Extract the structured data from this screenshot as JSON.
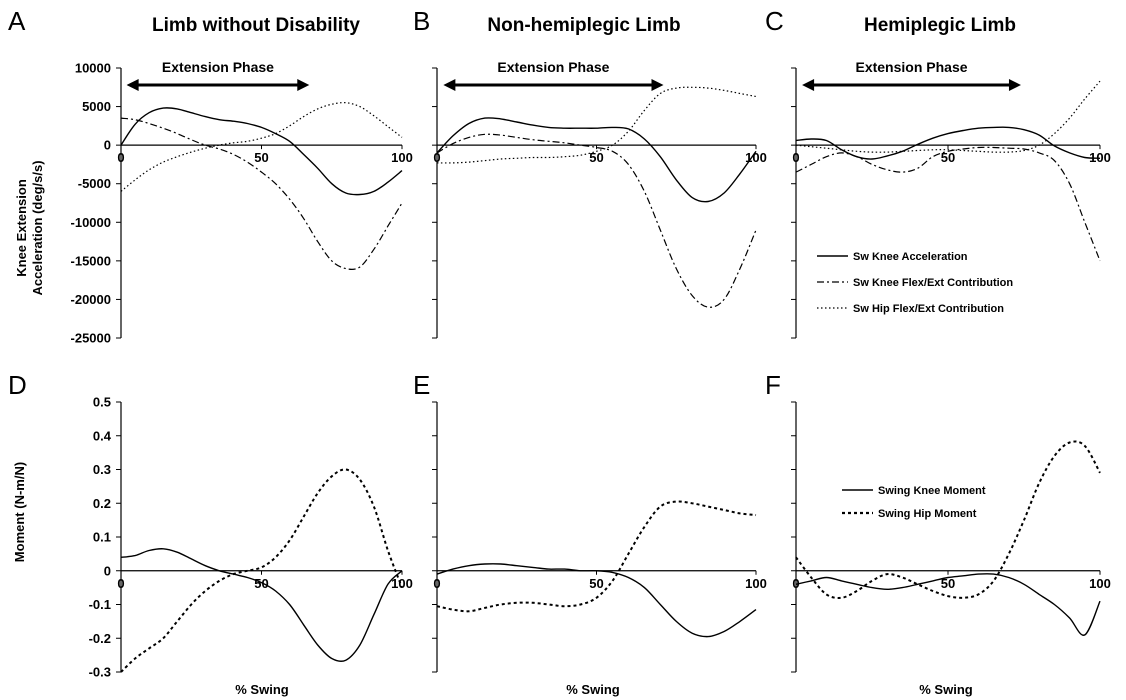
{
  "colors": {
    "line": "#000000",
    "series_gray": "#444444",
    "background": "#ffffff"
  },
  "columns": [
    {
      "title": "Limb without Disability"
    },
    {
      "title": "Non-hemiplegic Limb"
    },
    {
      "title": "Hemiplegic Limb"
    }
  ],
  "rows": [
    {
      "ylabel_lines": [
        "Knee Extension",
        "Acceleration (deg/s/s)"
      ]
    },
    {
      "ylabel_lines": [
        "Moment (N-m/N)"
      ]
    }
  ],
  "legends": {
    "acceleration": [
      {
        "label": "Sw Knee Acceleration",
        "style": "solid"
      },
      {
        "label": "Sw Knee Flex/Ext Contribution",
        "style": "dashdot"
      },
      {
        "label": "Sw Hip Flex/Ext Contribution",
        "style": "dotted"
      }
    ],
    "moment": [
      {
        "label": "Swing Knee Moment",
        "style": "solid"
      },
      {
        "label": "Swing Hip Moment",
        "style": "dashed"
      }
    ]
  },
  "chart_data": [
    {
      "panel": "A",
      "type": "line",
      "column": 0,
      "row": 0,
      "ylim": [
        -25000,
        10000
      ],
      "yticks": [
        "10000",
        "5000",
        "0",
        "-5000",
        "-10000",
        "-15000",
        "-20000",
        "-25000"
      ],
      "xticks": [
        "0",
        "50",
        "100"
      ],
      "annotation": {
        "label": "Extension Phase",
        "x_range": [
          2,
          67
        ]
      },
      "series": [
        {
          "style": "solid",
          "x": [
            0,
            5,
            10,
            15,
            20,
            25,
            30,
            35,
            40,
            45,
            50,
            55,
            60,
            65,
            70,
            75,
            80,
            85,
            90,
            95,
            100
          ],
          "values": [
            0,
            2700,
            4200,
            4800,
            4700,
            4200,
            3700,
            3300,
            3100,
            2800,
            2300,
            1500,
            500,
            -1200,
            -3000,
            -5000,
            -6200,
            -6400,
            -6000,
            -4800,
            -3300
          ]
        },
        {
          "style": "dashdot",
          "x": [
            0,
            5,
            10,
            15,
            20,
            25,
            30,
            35,
            40,
            45,
            50,
            55,
            60,
            65,
            70,
            75,
            80,
            85,
            90,
            95,
            100
          ],
          "values": [
            3500,
            3300,
            2800,
            2200,
            1500,
            700,
            0,
            -500,
            -1200,
            -2200,
            -3500,
            -5000,
            -7000,
            -9500,
            -12500,
            -15000,
            -16000,
            -15800,
            -13500,
            -10500,
            -7500
          ]
        },
        {
          "style": "dotted",
          "x": [
            0,
            5,
            10,
            15,
            20,
            25,
            30,
            35,
            40,
            45,
            50,
            55,
            60,
            65,
            70,
            75,
            80,
            85,
            90,
            95,
            100
          ],
          "values": [
            -6000,
            -4500,
            -3200,
            -2200,
            -1500,
            -900,
            -400,
            0,
            300,
            500,
            900,
            1500,
            2500,
            3700,
            4700,
            5300,
            5500,
            5000,
            3800,
            2400,
            1000
          ]
        }
      ]
    },
    {
      "panel": "B",
      "type": "line",
      "column": 1,
      "row": 0,
      "ylim": [
        -25000,
        10000
      ],
      "xticks": [
        "0",
        "50",
        "100"
      ],
      "annotation": {
        "label": "Extension Phase",
        "x_range": [
          2,
          71
        ]
      },
      "series": [
        {
          "style": "solid",
          "x": [
            0,
            5,
            10,
            15,
            20,
            25,
            30,
            35,
            40,
            45,
            50,
            55,
            60,
            65,
            70,
            75,
            80,
            85,
            90,
            95,
            100
          ],
          "values": [
            -1000,
            1200,
            2800,
            3500,
            3400,
            3000,
            2600,
            2300,
            2200,
            2200,
            2200,
            2300,
            2100,
            800,
            -1500,
            -4500,
            -6800,
            -7300,
            -6200,
            -3700,
            -800
          ]
        },
        {
          "style": "dashdot",
          "x": [
            0,
            5,
            10,
            15,
            20,
            25,
            30,
            35,
            40,
            45,
            50,
            55,
            60,
            65,
            70,
            75,
            80,
            85,
            90,
            95,
            100
          ],
          "values": [
            -1000,
            200,
            1000,
            1400,
            1300,
            1000,
            700,
            500,
            300,
            0,
            -300,
            -800,
            -2500,
            -6000,
            -11000,
            -16000,
            -19500,
            -21000,
            -20000,
            -16000,
            -11000
          ]
        },
        {
          "style": "dotted",
          "x": [
            0,
            5,
            10,
            15,
            20,
            25,
            30,
            35,
            40,
            45,
            50,
            55,
            60,
            65,
            70,
            75,
            80,
            85,
            90,
            95,
            100
          ],
          "values": [
            -2300,
            -2300,
            -2200,
            -2000,
            -1800,
            -1700,
            -1600,
            -1600,
            -1500,
            -1300,
            -800,
            0,
            1800,
            4500,
            6700,
            7400,
            7500,
            7400,
            7100,
            6700,
            6300
          ]
        }
      ]
    },
    {
      "panel": "C",
      "type": "line",
      "column": 2,
      "row": 0,
      "ylim": [
        -25000,
        10000
      ],
      "xticks": [
        "0",
        "50",
        "100"
      ],
      "annotation": {
        "label": "Extension Phase",
        "x_range": [
          2,
          74
        ]
      },
      "series": [
        {
          "style": "solid",
          "x": [
            0,
            5,
            10,
            15,
            20,
            25,
            30,
            35,
            40,
            45,
            50,
            55,
            60,
            65,
            70,
            75,
            80,
            85,
            90,
            95,
            100
          ],
          "values": [
            600,
            800,
            600,
            -600,
            -1500,
            -1800,
            -1400,
            -800,
            100,
            900,
            1500,
            1900,
            2200,
            2300,
            2300,
            2000,
            1300,
            -100,
            -1000,
            -1600,
            -1700
          ]
        },
        {
          "style": "dashdot",
          "x": [
            0,
            5,
            10,
            15,
            20,
            25,
            30,
            35,
            40,
            45,
            50,
            55,
            60,
            65,
            70,
            75,
            80,
            85,
            90,
            95,
            100
          ],
          "values": [
            -3500,
            -2500,
            -1500,
            -1000,
            -1500,
            -2500,
            -3200,
            -3500,
            -3000,
            -1500,
            -800,
            -500,
            -300,
            -300,
            -400,
            -500,
            -1000,
            -2000,
            -5000,
            -10000,
            -15000
          ]
        },
        {
          "style": "dotted",
          "x": [
            0,
            5,
            10,
            15,
            20,
            25,
            30,
            35,
            40,
            45,
            50,
            55,
            60,
            65,
            70,
            75,
            80,
            85,
            90,
            95,
            100
          ],
          "values": [
            0,
            -200,
            -400,
            -600,
            -800,
            -900,
            -900,
            -800,
            -700,
            -600,
            -600,
            -700,
            -800,
            -900,
            -900,
            -700,
            0,
            1500,
            3500,
            6000,
            8300
          ]
        }
      ]
    },
    {
      "panel": "D",
      "type": "line",
      "column": 0,
      "row": 1,
      "ylim": [
        -0.3,
        0.5
      ],
      "yticks": [
        "0.5",
        "0.4",
        "0.3",
        "0.2",
        "0.1",
        "0",
        "-0.1",
        "-0.2",
        "-0.3"
      ],
      "xticks": [
        "0",
        "50",
        "100"
      ],
      "series": [
        {
          "style": "solid",
          "x": [
            0,
            5,
            10,
            15,
            20,
            25,
            30,
            35,
            40,
            45,
            50,
            55,
            60,
            65,
            70,
            75,
            80,
            85,
            90,
            95,
            100
          ],
          "values": [
            0.04,
            0.045,
            0.06,
            0.065,
            0.055,
            0.035,
            0.015,
            0.0,
            -0.01,
            -0.02,
            -0.035,
            -0.06,
            -0.1,
            -0.16,
            -0.22,
            -0.26,
            -0.265,
            -0.22,
            -0.13,
            -0.04,
            0.0
          ]
        },
        {
          "style": "dashed",
          "x": [
            0,
            5,
            10,
            15,
            20,
            25,
            30,
            35,
            40,
            45,
            50,
            55,
            60,
            65,
            70,
            75,
            80,
            85,
            90,
            95,
            100
          ],
          "values": [
            -0.3,
            -0.26,
            -0.23,
            -0.2,
            -0.15,
            -0.1,
            -0.06,
            -0.03,
            -0.01,
            0.0,
            0.01,
            0.04,
            0.09,
            0.16,
            0.23,
            0.28,
            0.3,
            0.27,
            0.19,
            0.06,
            -0.05
          ]
        }
      ]
    },
    {
      "panel": "E",
      "type": "line",
      "column": 1,
      "row": 1,
      "ylim": [
        -0.3,
        0.5
      ],
      "xticks": [
        "0",
        "50",
        "100"
      ],
      "series": [
        {
          "style": "solid",
          "x": [
            0,
            5,
            10,
            15,
            20,
            25,
            30,
            35,
            40,
            45,
            50,
            55,
            60,
            65,
            70,
            75,
            80,
            85,
            90,
            95,
            100
          ],
          "values": [
            -0.01,
            0.005,
            0.015,
            0.02,
            0.02,
            0.015,
            0.01,
            0.005,
            0.005,
            0.0,
            0.0,
            -0.005,
            -0.02,
            -0.05,
            -0.1,
            -0.15,
            -0.185,
            -0.195,
            -0.18,
            -0.15,
            -0.115
          ]
        },
        {
          "style": "dashed",
          "x": [
            0,
            5,
            10,
            15,
            20,
            25,
            30,
            35,
            40,
            45,
            50,
            55,
            60,
            65,
            70,
            75,
            80,
            85,
            90,
            95,
            100
          ],
          "values": [
            -0.105,
            -0.115,
            -0.12,
            -0.11,
            -0.1,
            -0.095,
            -0.095,
            -0.1,
            -0.105,
            -0.1,
            -0.08,
            -0.03,
            0.05,
            0.13,
            0.19,
            0.205,
            0.2,
            0.19,
            0.18,
            0.17,
            0.165
          ]
        }
      ]
    },
    {
      "panel": "F",
      "type": "line",
      "column": 2,
      "row": 1,
      "ylim": [
        -0.3,
        0.5
      ],
      "xticks": [
        "0",
        "50",
        "100"
      ],
      "series": [
        {
          "style": "solid",
          "x": [
            0,
            5,
            10,
            15,
            20,
            25,
            30,
            35,
            40,
            45,
            50,
            55,
            60,
            65,
            70,
            75,
            80,
            85,
            90,
            95,
            100
          ],
          "values": [
            -0.04,
            -0.03,
            -0.02,
            -0.03,
            -0.04,
            -0.05,
            -0.055,
            -0.05,
            -0.04,
            -0.03,
            -0.02,
            -0.015,
            -0.01,
            -0.01,
            -0.02,
            -0.04,
            -0.07,
            -0.1,
            -0.14,
            -0.19,
            -0.09
          ]
        },
        {
          "style": "dashed",
          "x": [
            0,
            5,
            10,
            15,
            20,
            25,
            30,
            35,
            40,
            45,
            50,
            55,
            60,
            65,
            70,
            75,
            80,
            85,
            90,
            95,
            100
          ],
          "values": [
            0.04,
            -0.02,
            -0.07,
            -0.08,
            -0.06,
            -0.03,
            -0.01,
            -0.02,
            -0.04,
            -0.06,
            -0.075,
            -0.08,
            -0.07,
            -0.03,
            0.05,
            0.15,
            0.26,
            0.34,
            0.38,
            0.37,
            0.29
          ]
        }
      ]
    }
  ],
  "series_names": {
    "acceleration": [
      "Sw Knee Acceleration",
      "Sw Knee Flex/Ext Contribution",
      "Sw Hip Flex/Ext Contribution"
    ],
    "moment": [
      "Swing Knee Moment",
      "Swing Hip Moment"
    ]
  },
  "xlabel": "% Swing"
}
